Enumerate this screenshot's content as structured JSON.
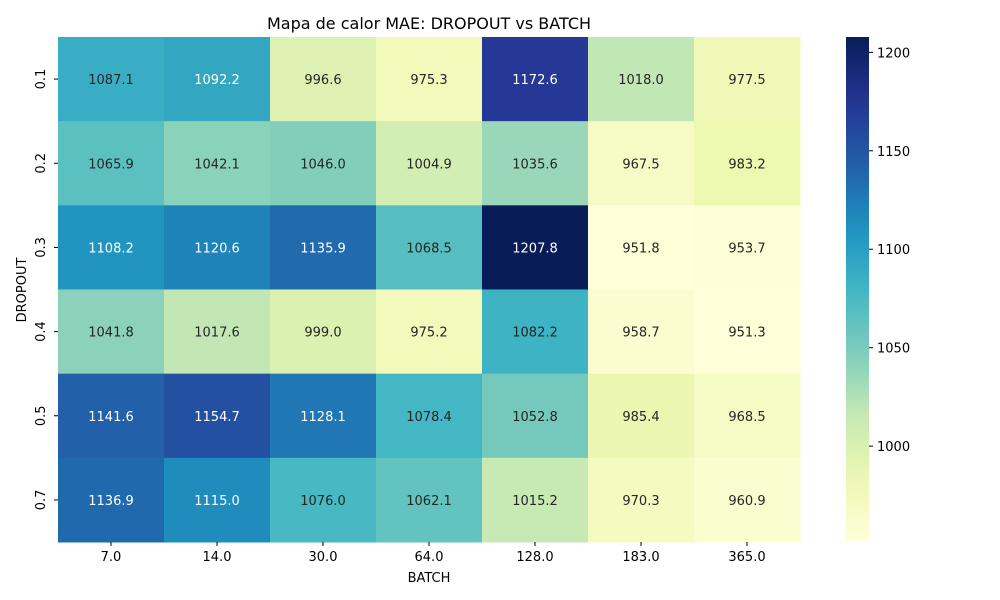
{
  "chart_data": {
    "type": "heatmap",
    "title": "Mapa de calor MAE: DROPOUT vs BATCH",
    "xlabel": "BATCH",
    "ylabel": "DROPOUT",
    "x_categories": [
      "7.0",
      "14.0",
      "30.0",
      "64.0",
      "128.0",
      "183.0",
      "365.0"
    ],
    "y_categories": [
      "0.1",
      "0.2",
      "0.3",
      "0.4",
      "0.5",
      "0.7"
    ],
    "values": [
      [
        1087.1,
        1092.2,
        996.6,
        975.3,
        1172.6,
        1018.0,
        977.5
      ],
      [
        1065.9,
        1042.1,
        1046.0,
        1004.9,
        1035.6,
        967.5,
        983.2
      ],
      [
        1108.2,
        1120.6,
        1135.9,
        1068.5,
        1207.8,
        951.8,
        953.7
      ],
      [
        1041.8,
        1017.6,
        999.0,
        975.2,
        1082.2,
        958.7,
        951.3
      ],
      [
        1141.6,
        1154.7,
        1128.1,
        1078.4,
        1052.8,
        985.4,
        968.5
      ],
      [
        1136.9,
        1115.0,
        1076.0,
        1062.1,
        1015.2,
        970.3,
        960.9
      ]
    ],
    "value_format": "0.1f",
    "colormap": "YlGnBu",
    "vmin": 951.3,
    "vmax": 1207.8,
    "colorbar_ticks": [
      1000,
      1050,
      1100,
      1150,
      1200
    ],
    "colorbar_tick_labels": [
      "1000",
      "1050",
      "1100",
      "1150",
      "1200"
    ]
  }
}
